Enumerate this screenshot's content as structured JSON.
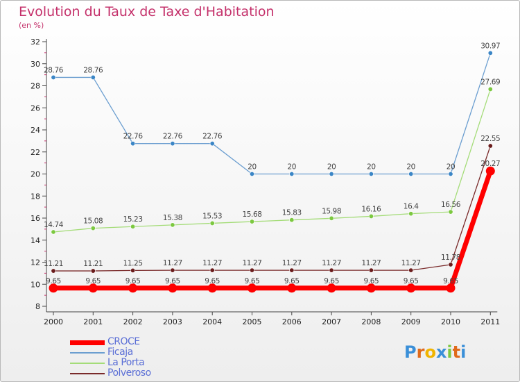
{
  "chart_data": {
    "type": "line",
    "title": "Evolution du Taux de Taxe d'Habitation",
    "subtitle": "(en %)",
    "x": [
      "2000",
      "2001",
      "2002",
      "2003",
      "2004",
      "2005",
      "2006",
      "2007",
      "2008",
      "2009",
      "2010",
      "2011"
    ],
    "ylim": [
      8,
      32
    ],
    "yticks": [
      8,
      10,
      12,
      14,
      16,
      18,
      20,
      22,
      24,
      26,
      28,
      30,
      32
    ],
    "grid": false,
    "legend_position": "bottom-left",
    "series": [
      {
        "name": "Ficaja",
        "color": "#6b9ed0",
        "marker_color": "#3b86c6",
        "values": [
          28.76,
          28.76,
          22.76,
          22.76,
          22.76,
          20,
          20,
          20,
          20,
          20,
          20,
          30.97
        ],
        "labels": [
          "28.76",
          "28.76",
          "22.76",
          "22.76",
          "22.76",
          "20",
          "20",
          "20",
          "20",
          "20",
          "20",
          "30.97"
        ]
      },
      {
        "name": "La Porta",
        "color": "#a4dc78",
        "marker_color": "#7cc840",
        "values": [
          14.74,
          15.08,
          15.23,
          15.38,
          15.53,
          15.68,
          15.83,
          15.98,
          16.16,
          16.4,
          16.56,
          27.69
        ],
        "labels": [
          "14.74",
          "15.08",
          "15.23",
          "15.38",
          "15.53",
          "15.68",
          "15.83",
          "15.98",
          "16.16",
          "16.4",
          "16.56",
          "27.69"
        ]
      },
      {
        "name": "Polveroso",
        "color": "#7a2a2a",
        "marker_color": "#6a1c1c",
        "values": [
          11.21,
          11.21,
          11.25,
          11.27,
          11.27,
          11.27,
          11.27,
          11.27,
          11.27,
          11.27,
          11.78,
          22.55
        ],
        "labels": [
          "11.21",
          "11.21",
          "11.25",
          "11.27",
          "11.27",
          "11.27",
          "11.27",
          "11.27",
          "11.27",
          "11.27",
          "11.78",
          "22.55"
        ]
      },
      {
        "name": "CROCE",
        "color": "#ff0000",
        "marker_color": "#ff0000",
        "values": [
          9.65,
          9.65,
          9.65,
          9.65,
          9.65,
          9.65,
          9.65,
          9.65,
          9.65,
          9.65,
          9.65,
          20.27
        ],
        "labels": [
          "9.65",
          "9.65",
          "9.65",
          "9.65",
          "9.65",
          "9.65",
          "9.65",
          "9.65",
          "9.65",
          "9.65",
          "9.65",
          "20.27"
        ]
      }
    ],
    "legend": [
      {
        "name": "CROCE",
        "color": "#ff0000",
        "text_color": "#5b6fd6"
      },
      {
        "name": "Ficaja",
        "color": "#6b9ed0",
        "text_color": "#5b6fd6"
      },
      {
        "name": "La Porta",
        "color": "#a4dc78",
        "text_color": "#5b6fd6"
      },
      {
        "name": "Polveroso",
        "color": "#7a2a2a",
        "text_color": "#5b6fd6"
      }
    ]
  },
  "logo": {
    "letters": [
      "P",
      "r",
      "o",
      "x",
      "i",
      "t",
      "i"
    ],
    "colors": [
      "#3a8fd8",
      "#e06a1a",
      "#f0b400",
      "#3a8fd8",
      "#7cc840",
      "#e06a1a",
      "#3a8fd8"
    ]
  }
}
